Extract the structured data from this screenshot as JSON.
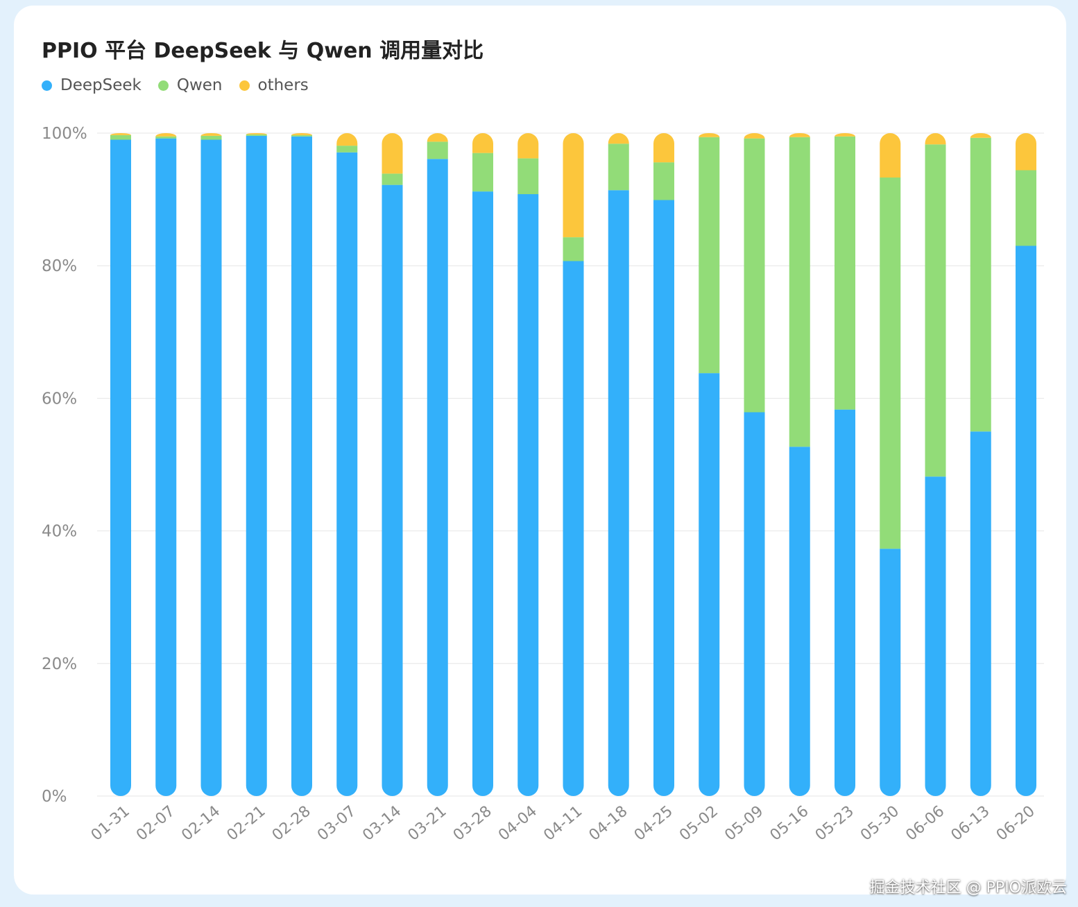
{
  "chart_data": {
    "type": "bar",
    "stacked": true,
    "title": "PPIO 平台 DeepSeek 与 Qwen 调用量对比",
    "legend_position": "top-left",
    "grid": true,
    "ylim": [
      0,
      100
    ],
    "y_ticks": [
      "0%",
      "20%",
      "40%",
      "60%",
      "80%",
      "100%"
    ],
    "categories": [
      "01-31",
      "02-07",
      "02-14",
      "02-21",
      "02-28",
      "03-07",
      "03-14",
      "03-21",
      "03-28",
      "04-04",
      "04-11",
      "04-18",
      "04-25",
      "05-02",
      "05-09",
      "05-16",
      "05-23",
      "05-30",
      "06-06",
      "06-13",
      "06-20"
    ],
    "series": [
      {
        "name": "DeepSeek",
        "color": "#33b0fa",
        "values": [
          99.0,
          99.2,
          99.0,
          99.6,
          99.5,
          97.1,
          92.2,
          96.1,
          91.2,
          90.8,
          80.7,
          91.4,
          89.9,
          63.8,
          57.9,
          52.7,
          58.3,
          37.3,
          48.2,
          55.0,
          83.0
        ]
      },
      {
        "name": "Qwen",
        "color": "#92dc78",
        "values": [
          0.7,
          0.3,
          0.6,
          0.2,
          0.2,
          1.0,
          1.7,
          2.6,
          5.8,
          5.4,
          3.6,
          7.0,
          5.7,
          35.6,
          41.3,
          46.7,
          41.2,
          56.0,
          50.1,
          44.3,
          11.4
        ]
      },
      {
        "name": "others",
        "color": "#fcc63c",
        "values": [
          0.3,
          0.5,
          0.4,
          0.2,
          0.3,
          1.9,
          6.1,
          1.3,
          3.0,
          3.8,
          15.7,
          1.6,
          4.4,
          0.6,
          0.8,
          0.6,
          0.5,
          6.7,
          1.7,
          0.7,
          5.6
        ]
      }
    ]
  },
  "footer": {
    "text": "掘金技术社区 @ PPIO派欧云"
  }
}
